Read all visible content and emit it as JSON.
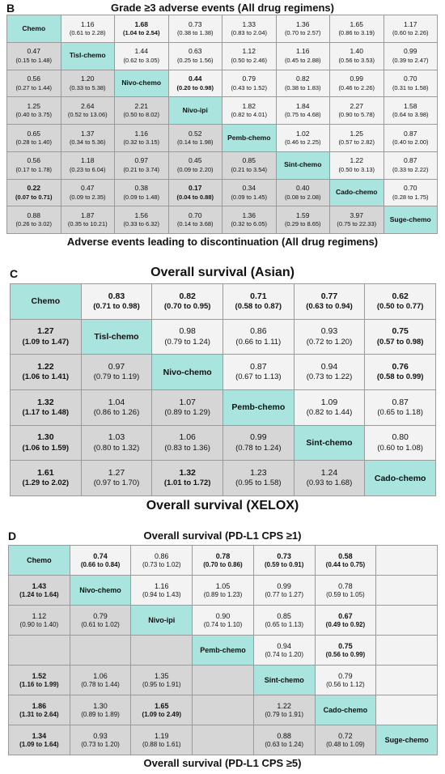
{
  "panels": [
    {
      "label": "B",
      "title": "Grade ≥3 adverse events (All drug regimens)",
      "footer": "Adverse events leading to discontinuation (All drug regimens)",
      "rows": [
        [
          {
            "label": "Chemo"
          },
          {
            "e": "1.16",
            "ci": "(0.61 to 2.28)"
          },
          {
            "e": "1.68",
            "ci": "(1.04 to 2.54)",
            "bold": true
          },
          {
            "e": "0.73",
            "ci": "(0.38 to 1.38)"
          },
          {
            "e": "1.33",
            "ci": "(0.83 to 2.04)"
          },
          {
            "e": "1.36",
            "ci": "(0.70 to 2.57)"
          },
          {
            "e": "1.65",
            "ci": "(0.86 to 3.19)"
          },
          {
            "e": "1.17",
            "ci": "(0.60 to 2.26)"
          }
        ],
        [
          {
            "e": "0.47",
            "ci": "(0.15 to 1.48)"
          },
          {
            "label": "Tisl-chemo"
          },
          {
            "e": "1.44",
            "ci": "(0.62 to 3.05)"
          },
          {
            "e": "0.63",
            "ci": "(0.25 to 1.56)"
          },
          {
            "e": "1.12",
            "ci": "(0.50 to 2.46)"
          },
          {
            "e": "1.16",
            "ci": "(0.45 to 2.88)"
          },
          {
            "e": "1.40",
            "ci": "(0.56 to 3.53)"
          },
          {
            "e": "0.99",
            "ci": "(0.39 to 2.47)"
          }
        ],
        [
          {
            "e": "0.56",
            "ci": "(0.27 to 1.44)"
          },
          {
            "e": "1.20",
            "ci": "(0.33 to 5.38)"
          },
          {
            "label": "Nivo-chemo"
          },
          {
            "e": "0.44",
            "ci": "(0.20 to 0.98)",
            "bold": true
          },
          {
            "e": "0.79",
            "ci": "(0.43 to 1.52)"
          },
          {
            "e": "0.82",
            "ci": "(0.38 to 1.83)"
          },
          {
            "e": "0.99",
            "ci": "(0.46 to 2.26)"
          },
          {
            "e": "0.70",
            "ci": "(0.31 to 1.58)"
          }
        ],
        [
          {
            "e": "1.25",
            "ci": "(0.40 to 3.75)"
          },
          {
            "e": "2.64",
            "ci": "(0.52 to 13.06)"
          },
          {
            "e": "2.21",
            "ci": "(0.50 to 8.02)"
          },
          {
            "label": "Nivo-ipi"
          },
          {
            "e": "1.82",
            "ci": "(0.82 to 4.01)"
          },
          {
            "e": "1.84",
            "ci": "(0.75 to 4.68)"
          },
          {
            "e": "2.27",
            "ci": "(0.90 to 5.78)"
          },
          {
            "e": "1.58",
            "ci": "(0.64 to 3.98)"
          }
        ],
        [
          {
            "e": "0.65",
            "ci": "(0.28 to 1.40)"
          },
          {
            "e": "1.37",
            "ci": "(0.34 to 5.36)"
          },
          {
            "e": "1.16",
            "ci": "(0.32 to 3.15)"
          },
          {
            "e": "0.52",
            "ci": "(0.14 to 1.98)"
          },
          {
            "label": "Pemb-chemo"
          },
          {
            "e": "1.02",
            "ci": "(0.46 to 2.25)"
          },
          {
            "e": "1.25",
            "ci": "(0.57 to 2.82)"
          },
          {
            "e": "0.87",
            "ci": "(0.40 to 2.00)"
          }
        ],
        [
          {
            "e": "0.56",
            "ci": "(0.17 to 1.78)"
          },
          {
            "e": "1.18",
            "ci": "(0.23 to 6.04)"
          },
          {
            "e": "0.97",
            "ci": "(0.21 to 3.74)"
          },
          {
            "e": "0.45",
            "ci": "(0.09 to 2.20)"
          },
          {
            "e": "0.85",
            "ci": "(0.21 to 3.54)"
          },
          {
            "label": "Sint-chemo"
          },
          {
            "e": "1.22",
            "ci": "(0.50 to 3.13)"
          },
          {
            "e": "0.87",
            "ci": "(0.33 to 2.22)"
          }
        ],
        [
          {
            "e": "0.22",
            "ci": "(0.07 to 0.71)",
            "bold": true
          },
          {
            "e": "0.47",
            "ci": "(0.09 to 2.35)"
          },
          {
            "e": "0.38",
            "ci": "(0.09 to 1.48)"
          },
          {
            "e": "0.17",
            "ci": "(0.04 to 0.88)",
            "bold": true
          },
          {
            "e": "0.34",
            "ci": "(0.09 to 1.45)"
          },
          {
            "e": "0.40",
            "ci": "(0.08 to 2.08)"
          },
          {
            "label": "Cado-chemo"
          },
          {
            "e": "0.70",
            "ci": "(0.28 to 1.75)"
          }
        ],
        [
          {
            "e": "0.88",
            "ci": "(0.26 to 3.02)"
          },
          {
            "e": "1.87",
            "ci": "(0.35 to 10.21)"
          },
          {
            "e": "1.56",
            "ci": "(0.33 to 6.32)"
          },
          {
            "e": "0.70",
            "ci": "(0.14 to 3.68)"
          },
          {
            "e": "1.36",
            "ci": "(0.32 to 6.05)"
          },
          {
            "e": "1.59",
            "ci": "(0.29 to 8.65)"
          },
          {
            "e": "3.97",
            "ci": "(0.75 to 22.33)"
          },
          {
            "label": "Suge-chemo"
          }
        ]
      ]
    },
    {
      "label": "C",
      "title": "Overall survival (Asian)",
      "footer": "Overall survival (XELOX)",
      "rows": [
        [
          {
            "label": "Chemo"
          },
          {
            "e": "0.83",
            "ci": "(0.71 to 0.98)",
            "bold": true
          },
          {
            "e": "0.82",
            "ci": "(0.70 to 0.95)",
            "bold": true
          },
          {
            "e": "0.71",
            "ci": "(0.58 to 0.87)",
            "bold": true
          },
          {
            "e": "0.77",
            "ci": "(0.63 to 0.94)",
            "bold": true
          },
          {
            "e": "0.62",
            "ci": "(0.50 to 0.77)",
            "bold": true
          }
        ],
        [
          {
            "e": "1.27",
            "ci": "(1.09 to 1.47)",
            "bold": true
          },
          {
            "label": "Tisl-chemo"
          },
          {
            "e": "0.98",
            "ci": "(0.79 to 1.24)"
          },
          {
            "e": "0.86",
            "ci": "(0.66 to 1.11)"
          },
          {
            "e": "0.93",
            "ci": "(0.72 to 1.20)"
          },
          {
            "e": "0.75",
            "ci": "(0.57 to 0.98)",
            "bold": true
          }
        ],
        [
          {
            "e": "1.22",
            "ci": "(1.06 to 1.41)",
            "bold": true
          },
          {
            "e": "0.97",
            "ci": "(0.79 to 1.19)"
          },
          {
            "label": "Nivo-chemo"
          },
          {
            "e": "0.87",
            "ci": "(0.67 to 1.13)"
          },
          {
            "e": "0.94",
            "ci": "(0.73 to 1.22)"
          },
          {
            "e": "0.76",
            "ci": "(0.58 to 0.99)",
            "bold": true
          }
        ],
        [
          {
            "e": "1.32",
            "ci": "(1.17 to 1.48)",
            "bold": true
          },
          {
            "e": "1.04",
            "ci": "(0.86 to 1.26)"
          },
          {
            "e": "1.07",
            "ci": "(0.89 to 1.29)"
          },
          {
            "label": "Pemb-chemo"
          },
          {
            "e": "1.09",
            "ci": "(0.82 to 1.44)"
          },
          {
            "e": "0.87",
            "ci": "(0.65 to 1.18)"
          }
        ],
        [
          {
            "e": "1.30",
            "ci": "(1.06 to 1.59)",
            "bold": true
          },
          {
            "e": "1.03",
            "ci": "(0.80 to 1.32)"
          },
          {
            "e": "1.06",
            "ci": "(0.83 to 1.36)"
          },
          {
            "e": "0.99",
            "ci": "(0.78 to 1.24)"
          },
          {
            "label": "Sint-chemo"
          },
          {
            "e": "0.80",
            "ci": "(0.60 to 1.08)"
          }
        ],
        [
          {
            "e": "1.61",
            "ci": "(1.29 to 2.02)",
            "bold": true
          },
          {
            "e": "1.27",
            "ci": "(0.97 to 1.70)"
          },
          {
            "e": "1.32",
            "ci": "(1.01 to 1.72)",
            "bold": true
          },
          {
            "e": "1.23",
            "ci": "(0.95 to 1.58)"
          },
          {
            "e": "1.24",
            "ci": "(0.93 to 1.68)"
          },
          {
            "label": "Cado-chemo"
          }
        ]
      ]
    },
    {
      "label": "D",
      "title": "Overall survival (PD-L1 CPS ≥1)",
      "footer": "Overall survival (PD-L1 CPS ≥5)",
      "rows": [
        [
          {
            "label": "Chemo"
          },
          {
            "e": "0.74",
            "ci": "(0.66 to 0.84)",
            "bold": true
          },
          {
            "e": "0.86",
            "ci": "(0.73 to 1.02)"
          },
          {
            "e": "0.78",
            "ci": "(0.70 to 0.86)",
            "bold": true
          },
          {
            "e": "0.73",
            "ci": "(0.59 to 0.91)",
            "bold": true
          },
          {
            "e": "0.58",
            "ci": "(0.44 to 0.75)",
            "bold": true
          },
          null
        ],
        [
          {
            "e": "1.43",
            "ci": "(1.24 to 1.64)",
            "bold": true
          },
          {
            "label": "Nivo-chemo"
          },
          {
            "e": "1.16",
            "ci": "(0.94 to 1.43)"
          },
          {
            "e": "1.05",
            "ci": "(0.89 to 1.23)"
          },
          {
            "e": "0.99",
            "ci": "(0.77 to 1.27)"
          },
          {
            "e": "0.78",
            "ci": "(0.59 to 1.05)"
          },
          null
        ],
        [
          {
            "e": "1.12",
            "ci": "(0.90 to 1.40)"
          },
          {
            "e": "0.79",
            "ci": "(0.61 to 1.02)"
          },
          {
            "label": "Nivo-ipi"
          },
          {
            "e": "0.90",
            "ci": "(0.74 to 1.10)"
          },
          {
            "e": "0.85",
            "ci": "(0.65 to 1.13)"
          },
          {
            "e": "0.67",
            "ci": "(0.49 to 0.92)",
            "bold": true
          },
          null
        ],
        [
          null,
          null,
          null,
          {
            "label": "Pemb-chemo"
          },
          {
            "e": "0.94",
            "ci": "(0.74 to 1.20)"
          },
          {
            "e": "0.75",
            "ci": "(0.56 to 0.99)",
            "bold": true
          },
          null
        ],
        [
          {
            "e": "1.52",
            "ci": "(1.16 to 1.99)",
            "bold": true
          },
          {
            "e": "1.06",
            "ci": "(0.78 to 1.44)"
          },
          {
            "e": "1.35",
            "ci": "(0.95 to 1.91)"
          },
          null,
          {
            "label": "Sint-chemo"
          },
          {
            "e": "0.79",
            "ci": "(0.56 to 1.12)"
          },
          null
        ],
        [
          {
            "e": "1.86",
            "ci": "(1.31 to 2.64)",
            "bold": true
          },
          {
            "e": "1.30",
            "ci": "(0.89 to 1.89)"
          },
          {
            "e": "1.65",
            "ci": "(1.09 to 2.49)",
            "bold": true
          },
          null,
          {
            "e": "1.22",
            "ci": "(0.79 to 1.91)"
          },
          {
            "label": "Cado-chemo"
          },
          null
        ],
        [
          {
            "e": "1.34",
            "ci": "(1.09 to 1.64)",
            "bold": true
          },
          {
            "e": "0.93",
            "ci": "(0.73 to 1.20)"
          },
          {
            "e": "1.19",
            "ci": "(0.88 to 1.61)"
          },
          null,
          {
            "e": "0.88",
            "ci": "(0.63 to 1.24)"
          },
          {
            "e": "0.72",
            "ci": "(0.48 to 1.09)"
          },
          {
            "label": "Suge-chemo"
          }
        ]
      ]
    }
  ]
}
